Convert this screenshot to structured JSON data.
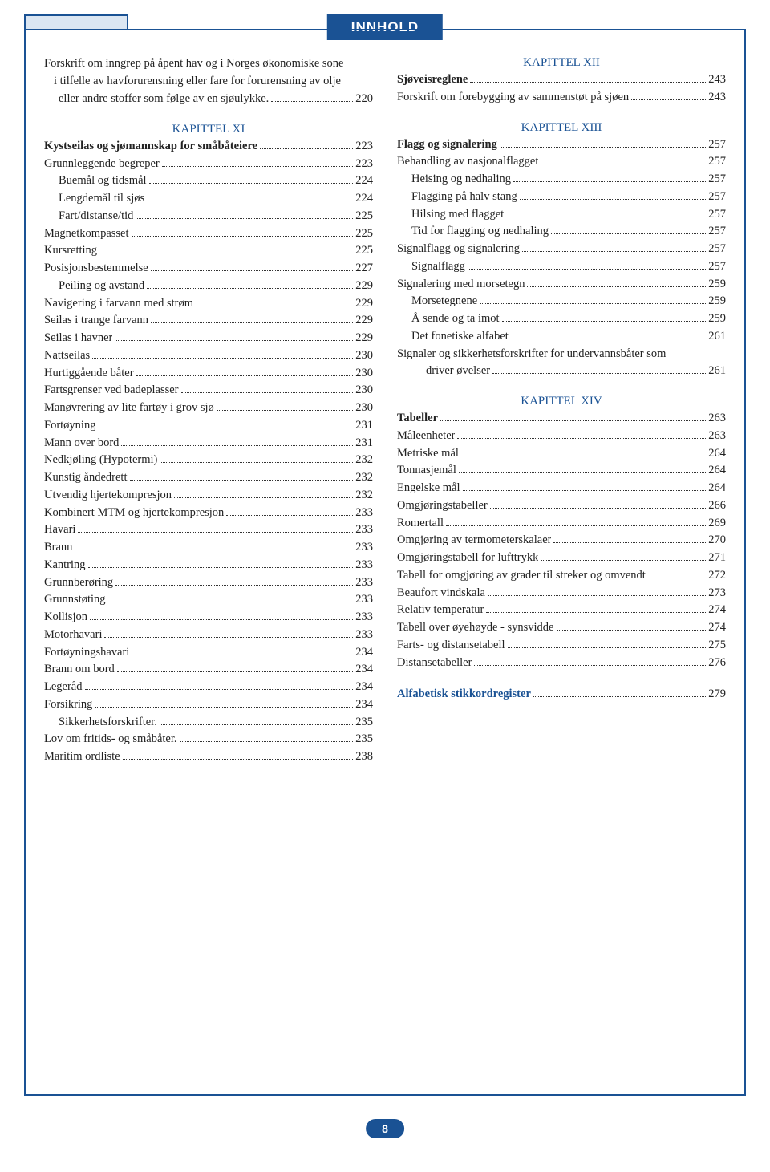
{
  "header": {
    "title": "INNHOLD"
  },
  "pageNumber": "8",
  "left": {
    "intro": [
      "Forskrift om inngrep på åpent hav og i Norges økonomiske sone",
      "i tilfelle av havforurensning eller fare for forurensning av olje",
      "eller andre stoffer som følge av en sjøulykke."
    ],
    "introPage": "220",
    "chapter": "KAPITTEL XI",
    "items": [
      {
        "label": "Kystseilas og sjømannskap for småbåteiere",
        "page": "223",
        "bold": true
      },
      {
        "label": "Grunnleggende begreper",
        "page": "223"
      },
      {
        "label": "Buemål og tidsmål",
        "page": "224",
        "indent": 1
      },
      {
        "label": "Lengdemål til sjøs",
        "page": "224",
        "indent": 1
      },
      {
        "label": "Fart/distanse/tid",
        "page": "225",
        "indent": 1
      },
      {
        "label": "Magnetkompasset",
        "page": "225"
      },
      {
        "label": "Kursretting",
        "page": "225"
      },
      {
        "label": "Posisjonsbestemmelse",
        "page": "227"
      },
      {
        "label": "Peiling og avstand",
        "page": "229",
        "indent": 1
      },
      {
        "label": "Navigering i farvann med strøm",
        "page": "229"
      },
      {
        "label": "Seilas i trange farvann",
        "page": "229"
      },
      {
        "label": "Seilas i havner",
        "page": "229"
      },
      {
        "label": "Nattseilas",
        "page": "230"
      },
      {
        "label": "Hurtiggående båter",
        "page": "230"
      },
      {
        "label": "Fartsgrenser ved badeplasser",
        "page": "230"
      },
      {
        "label": "Manøvrering av lite fartøy i grov sjø",
        "page": "230"
      },
      {
        "label": "Fortøyning",
        "page": "231"
      },
      {
        "label": "Mann over bord",
        "page": "231"
      },
      {
        "label": "Nedkjøling (Hypotermi)",
        "page": "232"
      },
      {
        "label": "Kunstig åndedrett",
        "page": "232"
      },
      {
        "label": "Utvendig hjertekompresjon",
        "page": "232"
      },
      {
        "label": "Kombinert MTM og hjertekompresjon",
        "page": "233"
      },
      {
        "label": "Havari",
        "page": "233"
      },
      {
        "label": "Brann",
        "page": "233"
      },
      {
        "label": "Kantring",
        "page": "233"
      },
      {
        "label": "Grunnberøring",
        "page": "233"
      },
      {
        "label": "Grunnstøting",
        "page": "233"
      },
      {
        "label": "Kollisjon",
        "page": "233"
      },
      {
        "label": "Motorhavari",
        "page": "233"
      },
      {
        "label": "Fortøyningshavari",
        "page": "234"
      },
      {
        "label": "Brann om bord",
        "page": "234"
      },
      {
        "label": "Legeråd",
        "page": "234"
      },
      {
        "label": "Forsikring",
        "page": "234"
      },
      {
        "label": "Sikkerhetsforskrifter.",
        "page": "235",
        "indent": 1
      },
      {
        "label": "Lov om fritids- og småbåter.",
        "page": "235"
      },
      {
        "label": "Maritim ordliste",
        "page": "238"
      }
    ]
  },
  "right": {
    "sections": [
      {
        "chapter": "KAPITTEL XII",
        "items": [
          {
            "label": "Sjøveisreglene",
            "page": "243",
            "bold": true
          },
          {
            "label": "Forskrift om forebygging av sammenstøt på sjøen",
            "page": "243"
          }
        ]
      },
      {
        "chapter": "KAPITTEL XIII",
        "items": [
          {
            "label": "Flagg og signalering",
            "page": "257",
            "bold": true
          },
          {
            "label": "Behandling av nasjonalflagget",
            "page": "257"
          },
          {
            "label": "Heising og nedhaling",
            "page": "257",
            "indent": 1
          },
          {
            "label": "Flagging på halv stang",
            "page": "257",
            "indent": 1
          },
          {
            "label": "Hilsing med flagget",
            "page": "257",
            "indent": 1
          },
          {
            "label": "Tid for flagging og nedhaling",
            "page": "257",
            "indent": 1
          },
          {
            "label": "Signalflagg og signalering",
            "page": "257"
          },
          {
            "label": "Signalflagg",
            "page": "257",
            "indent": 1
          },
          {
            "label": "Signalering med morsetegn",
            "page": "259"
          },
          {
            "label": "Morsetegnene",
            "page": "259",
            "indent": 1
          },
          {
            "label": "Å sende og ta imot",
            "page": "259",
            "indent": 1
          },
          {
            "label": "Det fonetiske alfabet",
            "page": "261",
            "indent": 1
          },
          {
            "label": "Signaler og sikkerhetsforskrifter for undervannsbåter som",
            "nowrap": true
          },
          {
            "label": "driver øvelser",
            "page": "261",
            "indent": 2
          }
        ]
      },
      {
        "chapter": "KAPITTEL XIV",
        "items": [
          {
            "label": "Tabeller",
            "page": "263",
            "bold": true
          },
          {
            "label": "Måleenheter",
            "page": "263"
          },
          {
            "label": "Metriske  mål",
            "page": "264"
          },
          {
            "label": "Tonnasjemål",
            "page": "264"
          },
          {
            "label": "Engelske  mål",
            "page": "264"
          },
          {
            "label": "Omgjøringstabeller",
            "page": "266"
          },
          {
            "label": "Romertall",
            "page": "269"
          },
          {
            "label": "Omgjøring av termometerskalaer",
            "page": "270"
          },
          {
            "label": "Omgjøringstabell for lufttrykk",
            "page": "271"
          },
          {
            "label": "Tabell for omgjøring av grader til streker og omvendt",
            "page": "272"
          },
          {
            "label": "Beaufort vindskala",
            "page": "273"
          },
          {
            "label": "Relativ temperatur",
            "page": "274"
          },
          {
            "label": "Tabell over øyehøyde - synsvidde",
            "page": "274"
          },
          {
            "label": "Farts- og distansetabell",
            "page": "275"
          },
          {
            "label": "Distansetabeller",
            "page": "276"
          }
        ]
      },
      {
        "chapter": "",
        "items": [
          {
            "label": "Alfabetisk stikkordregister",
            "page": "279",
            "bold": true,
            "blue": true
          }
        ]
      }
    ]
  }
}
